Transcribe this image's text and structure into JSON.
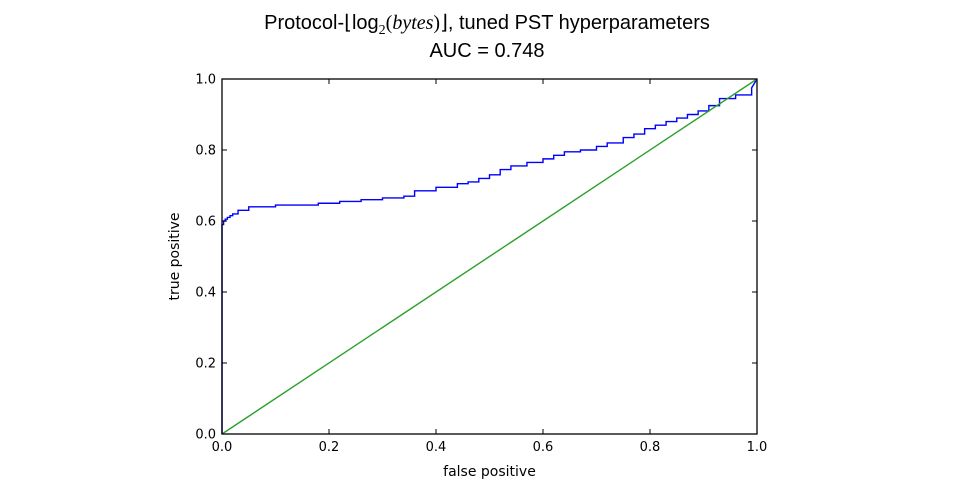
{
  "chart_data": {
    "type": "line",
    "title_parts": {
      "prefix": "Protocol-⌊log",
      "subscript": "2",
      "open_paren": "(",
      "italic": "bytes",
      "close": ")⌋",
      "suffix": ", tuned PST hyperparameters"
    },
    "subtitle": "AUC = 0.748",
    "xlabel": "false positive",
    "ylabel": "true positive",
    "xlim": [
      0.0,
      1.0
    ],
    "ylim": [
      0.0,
      1.0
    ],
    "xticks": [
      "0.0",
      "0.2",
      "0.4",
      "0.6",
      "0.8",
      "1.0"
    ],
    "yticks": [
      "0.0",
      "0.2",
      "0.4",
      "0.6",
      "0.8",
      "1.0"
    ],
    "grid": false,
    "legend": "none",
    "series": [
      {
        "color": "#0000ff",
        "x": [
          0.0,
          0.0,
          0.003,
          0.003,
          0.006,
          0.006,
          0.01,
          0.01,
          0.015,
          0.015,
          0.02,
          0.02,
          0.03,
          0.03,
          0.05,
          0.05,
          0.1,
          0.1,
          0.18,
          0.18,
          0.22,
          0.22,
          0.26,
          0.26,
          0.3,
          0.3,
          0.34,
          0.34,
          0.36,
          0.36,
          0.4,
          0.4,
          0.44,
          0.44,
          0.46,
          0.46,
          0.48,
          0.48,
          0.5,
          0.5,
          0.52,
          0.52,
          0.54,
          0.54,
          0.57,
          0.57,
          0.6,
          0.6,
          0.62,
          0.62,
          0.64,
          0.64,
          0.67,
          0.67,
          0.7,
          0.7,
          0.72,
          0.72,
          0.75,
          0.75,
          0.77,
          0.77,
          0.79,
          0.79,
          0.81,
          0.81,
          0.83,
          0.83,
          0.85,
          0.85,
          0.87,
          0.87,
          0.89,
          0.89,
          0.91,
          0.91,
          0.93,
          0.93,
          0.96,
          0.96,
          0.99,
          0.99,
          1.0
        ],
        "y": [
          0.0,
          0.59,
          0.59,
          0.6,
          0.6,
          0.605,
          0.605,
          0.61,
          0.61,
          0.615,
          0.615,
          0.62,
          0.62,
          0.63,
          0.63,
          0.64,
          0.64,
          0.645,
          0.645,
          0.65,
          0.65,
          0.655,
          0.655,
          0.66,
          0.66,
          0.665,
          0.665,
          0.67,
          0.67,
          0.685,
          0.685,
          0.695,
          0.695,
          0.705,
          0.705,
          0.71,
          0.71,
          0.72,
          0.72,
          0.73,
          0.73,
          0.745,
          0.745,
          0.755,
          0.755,
          0.765,
          0.765,
          0.775,
          0.775,
          0.785,
          0.785,
          0.795,
          0.795,
          0.8,
          0.8,
          0.81,
          0.81,
          0.82,
          0.82,
          0.835,
          0.835,
          0.845,
          0.845,
          0.86,
          0.86,
          0.87,
          0.87,
          0.88,
          0.88,
          0.89,
          0.89,
          0.9,
          0.9,
          0.91,
          0.91,
          0.925,
          0.925,
          0.945,
          0.945,
          0.955,
          0.955,
          0.975,
          1.0
        ]
      },
      {
        "color": "#2ca02c",
        "x": [
          0.0,
          1.0
        ],
        "y": [
          0.0,
          1.0
        ]
      }
    ]
  }
}
